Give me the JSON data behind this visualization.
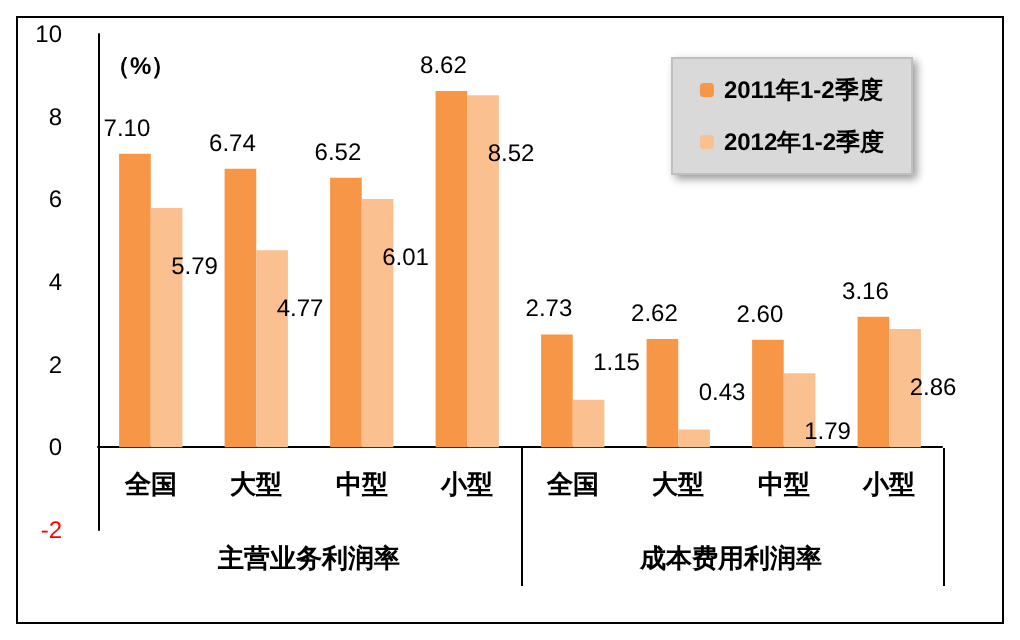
{
  "chart_data": {
    "type": "bar",
    "ylabel": "（%）",
    "categories": [
      "全国",
      "大型",
      "中型",
      "小型",
      "全国",
      "大型",
      "中型",
      "小型"
    ],
    "series": [
      {
        "name": "2011年1-2季度",
        "color": "#f79646",
        "values": [
          7.1,
          6.74,
          6.52,
          8.62,
          2.73,
          2.62,
          2.6,
          3.16
        ],
        "value_labels": [
          "7.10",
          "6.74",
          "6.52",
          "8.62",
          "2.73",
          "2.62",
          "2.60",
          "3.16"
        ]
      },
      {
        "name": "2012年1-2季度",
        "color": "#fac090",
        "values": [
          5.79,
          4.77,
          6.01,
          8.52,
          1.15,
          0.43,
          1.79,
          2.86
        ],
        "value_labels": [
          "5.79",
          "4.77",
          "6.01",
          "8.52",
          "1.15",
          "0.43",
          "1.79",
          "2.86"
        ]
      }
    ],
    "ylim": [
      -2,
      10
    ],
    "yticks": [
      -2,
      0,
      2,
      4,
      6,
      8,
      10
    ],
    "legend": "top right",
    "annotations": [
      "主营业务利润率",
      "成本费用利润率"
    ]
  }
}
